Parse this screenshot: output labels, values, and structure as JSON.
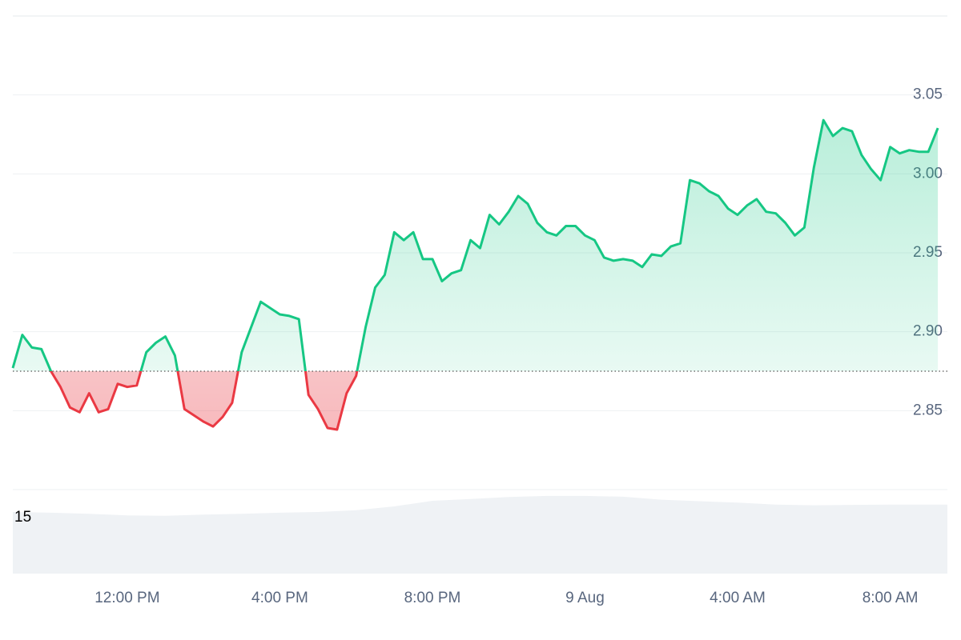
{
  "chart_data": {
    "type": "line",
    "x": [
      9,
      9.25,
      9.5,
      9.75,
      10,
      10.25,
      10.5,
      10.75,
      11,
      11.25,
      11.5,
      11.75,
      12,
      12.25,
      12.5,
      12.75,
      13,
      13.25,
      13.5,
      13.75,
      14,
      14.25,
      14.5,
      14.75,
      15,
      15.25,
      15.5,
      15.75,
      16,
      16.25,
      16.5,
      16.75,
      17,
      17.25,
      17.5,
      17.75,
      18,
      18.25,
      18.5,
      18.75,
      19,
      19.25,
      19.5,
      19.75,
      20,
      20.25,
      20.5,
      20.75,
      21,
      21.25,
      21.5,
      21.75,
      22,
      22.25,
      22.5,
      22.75,
      23,
      23.25,
      23.5,
      23.75,
      24,
      24.25,
      24.5,
      24.75,
      25,
      25.25,
      25.5,
      25.75,
      26,
      26.25,
      26.5,
      26.75,
      27,
      27.25,
      27.5,
      27.75,
      28,
      28.25,
      28.5,
      28.75,
      29,
      29.25,
      29.5,
      29.75,
      30,
      30.25,
      30.5,
      30.75,
      31,
      31.25,
      31.5,
      31.75,
      32,
      32.25,
      32.5,
      32.75,
      33,
      33.25
    ],
    "values": [
      2.877,
      2.898,
      2.89,
      2.889,
      2.875,
      2.865,
      2.852,
      2.849,
      2.861,
      2.849,
      2.851,
      2.867,
      2.865,
      2.866,
      2.887,
      2.893,
      2.897,
      2.885,
      2.851,
      2.847,
      2.843,
      2.84,
      2.846,
      2.855,
      2.887,
      2.903,
      2.919,
      2.915,
      2.911,
      2.91,
      2.908,
      2.86,
      2.851,
      2.839,
      2.838,
      2.861,
      2.872,
      2.903,
      2.928,
      2.936,
      2.963,
      2.958,
      2.963,
      2.946,
      2.946,
      2.932,
      2.937,
      2.939,
      2.958,
      2.953,
      2.974,
      2.968,
      2.976,
      2.986,
      2.981,
      2.969,
      2.963,
      2.961,
      2.967,
      2.967,
      2.961,
      2.958,
      2.947,
      2.945,
      2.946,
      2.945,
      2.941,
      2.949,
      2.948,
      2.954,
      2.956,
      2.996,
      2.994,
      2.989,
      2.986,
      2.978,
      2.974,
      2.98,
      2.984,
      2.976,
      2.975,
      2.969,
      2.961,
      2.966,
      3.004,
      3.034,
      3.024,
      3.029,
      3.027,
      3.012,
      3.003,
      2.996,
      3.017,
      3.013,
      3.015,
      3.014,
      3.014,
      3.029
    ],
    "baseline": 2.875,
    "up_color": "#16c784",
    "down_color": "#ea3943",
    "xlim": [
      9,
      33.5
    ],
    "xticks": [
      {
        "value": 12,
        "label": "12:00 PM"
      },
      {
        "value": 16,
        "label": "4:00 PM"
      },
      {
        "value": 20,
        "label": "8:00 PM"
      },
      {
        "value": 24,
        "label": "9 Aug"
      },
      {
        "value": 28,
        "label": "4:00 AM"
      },
      {
        "value": 32,
        "label": "8:00 AM"
      }
    ],
    "ylim": [
      2.8,
      3.1
    ],
    "yticks": [
      2.85,
      {
        "value": 2.9,
        "label": "2.90"
      },
      2.95,
      {
        "value": 3.0,
        "label": "3.00"
      },
      3.05
    ],
    "grid": true,
    "volume": {
      "color": "#eff2f5",
      "x": [
        9,
        10,
        11,
        12,
        13,
        14,
        15,
        16,
        17,
        18,
        19,
        20,
        21,
        22,
        23,
        24,
        25,
        26,
        27,
        28,
        29,
        30,
        31,
        32,
        33,
        33.5
      ],
      "values": [
        16.5,
        16.3,
        16,
        15.6,
        15.5,
        15.8,
        16,
        16.3,
        16.5,
        17,
        18,
        19.5,
        20,
        20.5,
        20.8,
        20.8,
        20.6,
        19.8,
        19.4,
        19,
        18.5,
        18.3,
        18.4,
        18.5,
        18.5,
        18.5
      ],
      "ylim": [
        0,
        22.5
      ],
      "yticks": [
        15
      ]
    }
  }
}
